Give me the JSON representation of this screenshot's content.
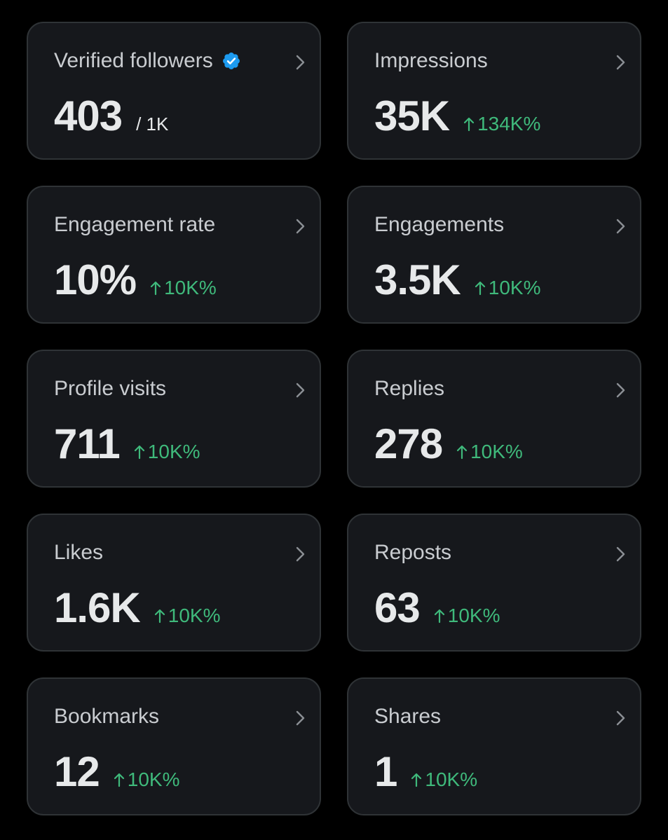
{
  "colors": {
    "background": "#000000",
    "card_bg": "#16181c",
    "card_border": "#2f3336",
    "title_text": "#c9ccd0",
    "value_text": "#e7e9ea",
    "positive_change": "#3fb97b",
    "verified_badge": "#1d9bf0",
    "chevron": "#8b8f94"
  },
  "cards": [
    {
      "title": "Verified followers",
      "value": "403",
      "suffix": "/ 1K",
      "icon": "verified-badge-icon"
    },
    {
      "title": "Impressions",
      "value": "35K",
      "change": "134K%",
      "change_icon": "up-arrow-icon"
    },
    {
      "title": "Engagement rate",
      "value": "10%",
      "change": "10K%",
      "change_icon": "up-arrow-icon"
    },
    {
      "title": "Engagements",
      "value": "3.5K",
      "change": "10K%",
      "change_icon": "up-arrow-icon"
    },
    {
      "title": "Profile visits",
      "value": "711",
      "change": "10K%",
      "change_icon": "up-arrow-icon"
    },
    {
      "title": "Replies",
      "value": "278",
      "change": "10K%",
      "change_icon": "up-arrow-icon"
    },
    {
      "title": "Likes",
      "value": "1.6K",
      "change": "10K%",
      "change_icon": "up-arrow-icon"
    },
    {
      "title": "Reposts",
      "value": "63",
      "change": "10K%",
      "change_icon": "up-arrow-icon"
    },
    {
      "title": "Bookmarks",
      "value": "12",
      "change": "10K%",
      "change_icon": "up-arrow-icon"
    },
    {
      "title": "Shares",
      "value": "1",
      "change": "10K%",
      "change_icon": "up-arrow-icon"
    }
  ]
}
